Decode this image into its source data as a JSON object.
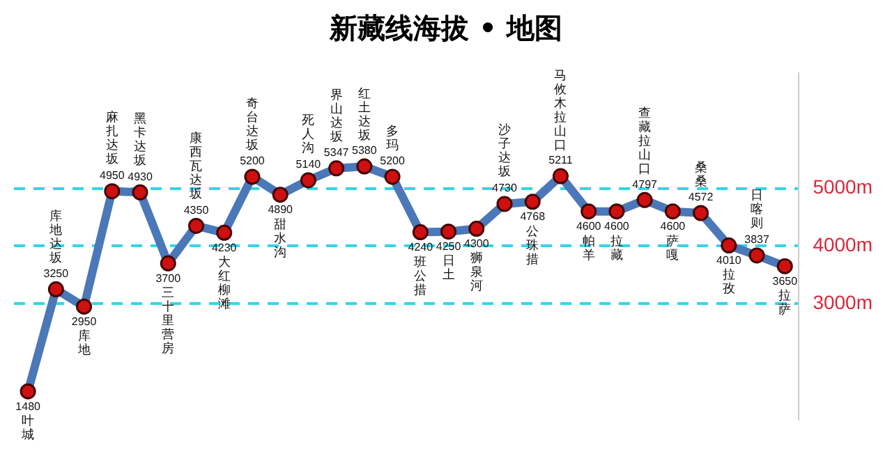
{
  "chart_data": {
    "type": "line",
    "title": "新藏线海拔 • 地图",
    "categories": [
      "叶城",
      "库地达坂",
      "库地",
      "麻扎达坂",
      "黑卡达坂",
      "三十里营房",
      "康西瓦达坂",
      "大红柳滩",
      "奇台达坂",
      "甜水沟",
      "死人沟",
      "界山达坂",
      "红土达坂",
      "多玛",
      "班公措",
      "日土",
      "狮泉河",
      "沙子达坂",
      "公珠措",
      "马攸木拉山口",
      "帕羊",
      "拉藏",
      "查藏拉山口",
      "萨嘎",
      "桑桑",
      "拉孜",
      "日喀则",
      "拉萨"
    ],
    "series": [
      {
        "color": "#4a78b8",
        "values": [
          1480,
          3250,
          2950,
          4950,
          4930,
          3700,
          4350,
          4230,
          5200,
          4890,
          5140,
          5347,
          5380,
          5200,
          4240,
          4250,
          4300,
          4730,
          4768,
          5211,
          4600,
          4600,
          4797,
          4600,
          4572,
          4010,
          3837,
          3650
        ]
      }
    ],
    "ylim": [
      1000,
      7000
    ],
    "yticks": [
      {
        "value": 3000,
        "label": "3000m"
      },
      {
        "value": 4000,
        "label": "4000m"
      },
      {
        "value": 5000,
        "label": "5000m"
      }
    ],
    "grid": "y",
    "tick_labels": "y",
    "data_labels": true,
    "marker": "circle",
    "legend": false
  }
}
